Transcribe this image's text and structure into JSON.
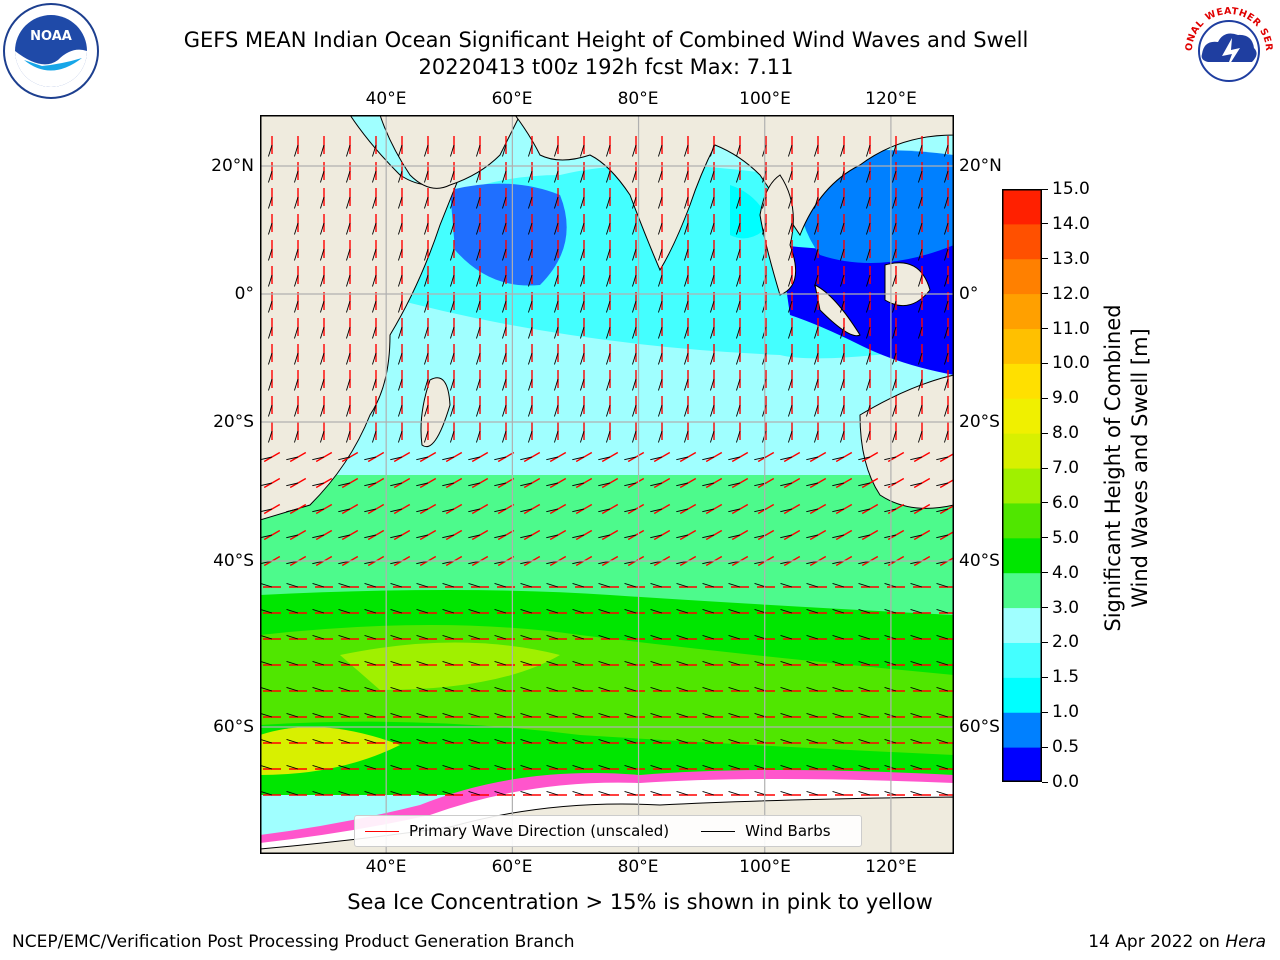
{
  "title": {
    "line1": "GEFS MEAN Indian Ocean Significant Height of Combined Wind Waves and Swell",
    "line2": "20220413 t00z 192h fcst   Max: 7.11"
  },
  "logos": {
    "left": {
      "icon": "noaa-logo",
      "text": "NOAA"
    },
    "right": {
      "icon": "nws-logo",
      "text": "NATIONAL WEATHER SERVICE"
    }
  },
  "map": {
    "region": "Indian Ocean",
    "lon_range": [
      20,
      130
    ],
    "lat_range": [
      -73,
      25
    ],
    "lon_ticks": [
      "40°E",
      "60°E",
      "80°E",
      "100°E",
      "120°E"
    ],
    "lat_ticks": [
      "20°N",
      "0°",
      "20°S",
      "40°S",
      "60°S"
    ],
    "grid": true,
    "land_color": "#efebde",
    "max_value": "7.11"
  },
  "legend": {
    "wave": "Primary Wave Direction (unscaled)",
    "wind": "Wind Barbs",
    "wave_color": "#ff0000",
    "wind_color": "#000000"
  },
  "colorbar": {
    "label_line1": "Significant Height of Combined",
    "label_line2": "Wind Waves and Swell [m]",
    "ticks": [
      "0.0",
      "0.5",
      "1.0",
      "1.5",
      "2.0",
      "3.0",
      "4.0",
      "5.0",
      "6.0",
      "7.0",
      "8.0",
      "9.0",
      "10.0",
      "11.0",
      "12.0",
      "13.0",
      "14.0",
      "15.0"
    ],
    "colors": [
      "#0000ff",
      "#0080ff",
      "#00ffff",
      "#44ffff",
      "#a0ffff",
      "#4dfa8c",
      "#00e600",
      "#50e600",
      "#a0f000",
      "#d8f000",
      "#f0f000",
      "#ffe000",
      "#ffc000",
      "#ffa000",
      "#ff8000",
      "#ff5000",
      "#ff2000"
    ]
  },
  "caption": "Sea Ice Concentration > 15% is shown in pink to yellow",
  "footer": {
    "left": "NCEP/EMC/Verification Post Processing Product Generation Branch",
    "date": "14 Apr 2022 on ",
    "host": "Hera"
  }
}
